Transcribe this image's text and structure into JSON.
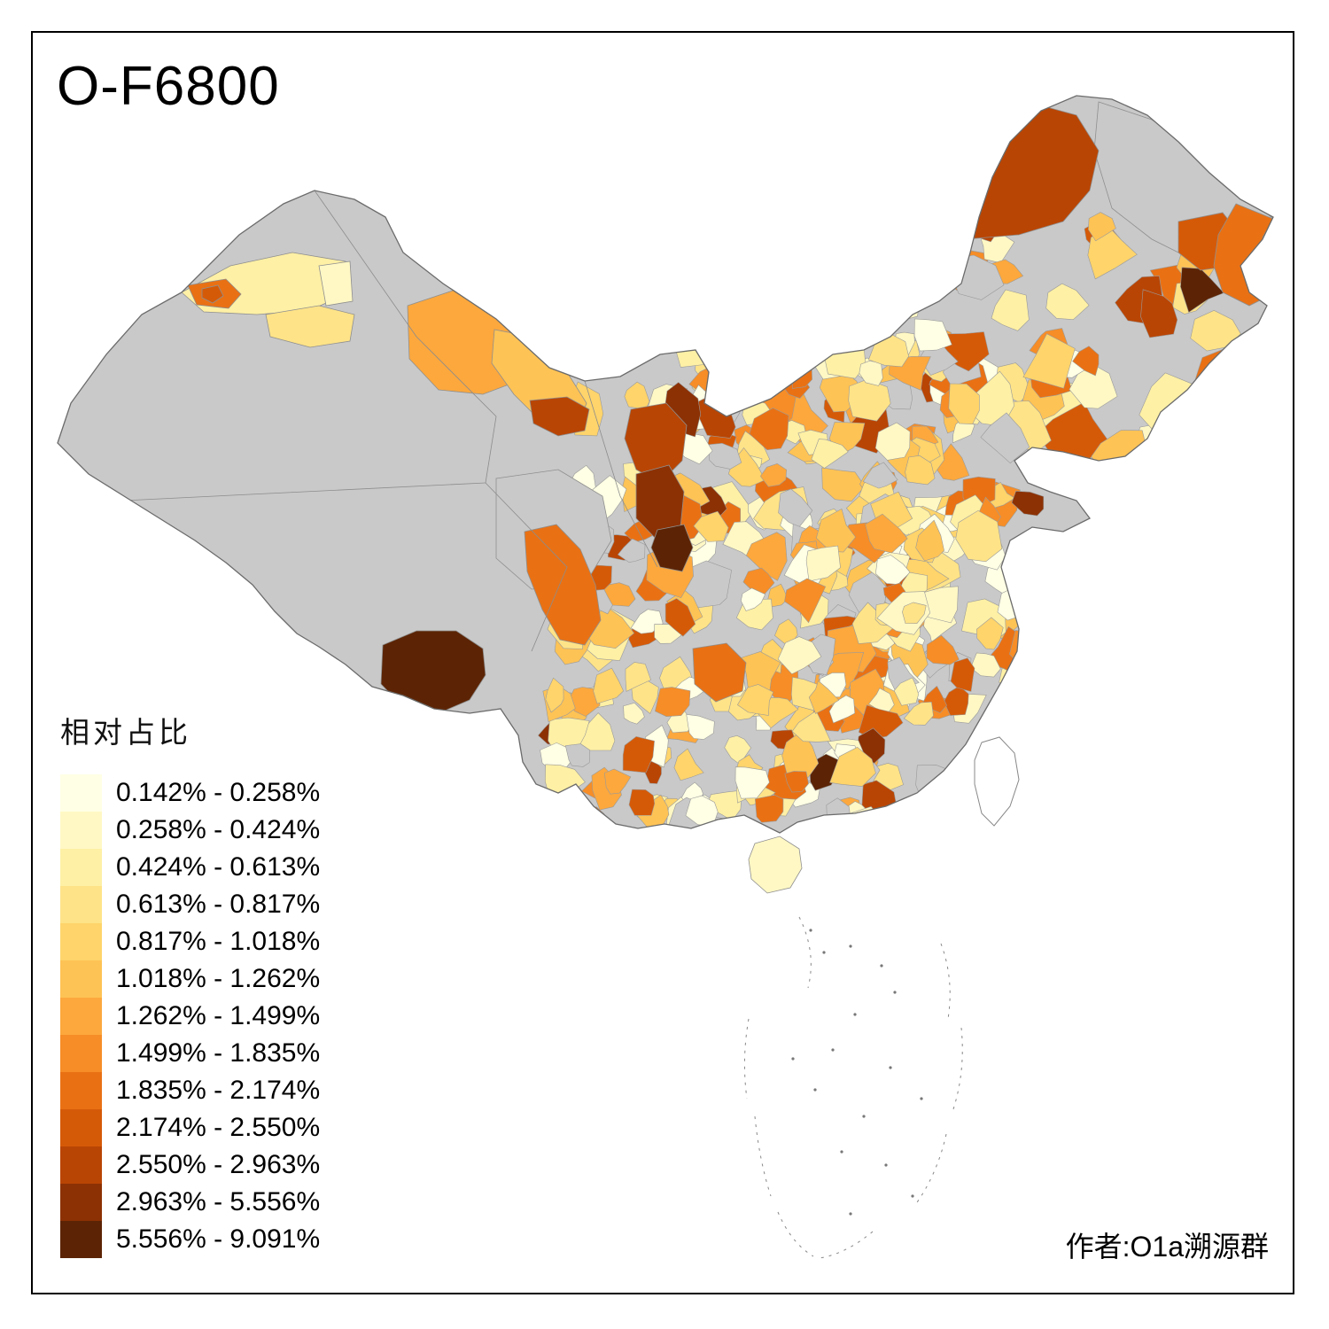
{
  "title": "O-F6800",
  "attribution": "作者:O1a溯源群",
  "legend": {
    "title": "相对占比",
    "items": [
      {
        "label": "0.142% - 0.258%",
        "color": "#FFFFE5"
      },
      {
        "label": "0.258% - 0.424%",
        "color": "#FFF8C5"
      },
      {
        "label": "0.424% - 0.613%",
        "color": "#FEF0A5"
      },
      {
        "label": "0.613% - 0.817%",
        "color": "#FEE388"
      },
      {
        "label": "0.817% - 1.018%",
        "color": "#FED46B"
      },
      {
        "label": "1.018% - 1.262%",
        "color": "#FEC355"
      },
      {
        "label": "1.262% - 1.499%",
        "color": "#FCA83D"
      },
      {
        "label": "1.499% - 1.835%",
        "color": "#F68D27"
      },
      {
        "label": "1.835% - 2.174%",
        "color": "#E97114"
      },
      {
        "label": "2.174% - 2.550%",
        "color": "#D55A08"
      },
      {
        "label": "2.550% - 2.963%",
        "color": "#B94504"
      },
      {
        "label": "2.963% - 5.556%",
        "color": "#8C3104"
      },
      {
        "label": "5.556% - 9.091%",
        "color": "#5C2405"
      }
    ]
  },
  "map": {
    "region": "China prefecture-level choropleth",
    "no_data_color": "#C9C9C9",
    "border_color": "#6B6B6B",
    "background": "#FFFFFF"
  }
}
